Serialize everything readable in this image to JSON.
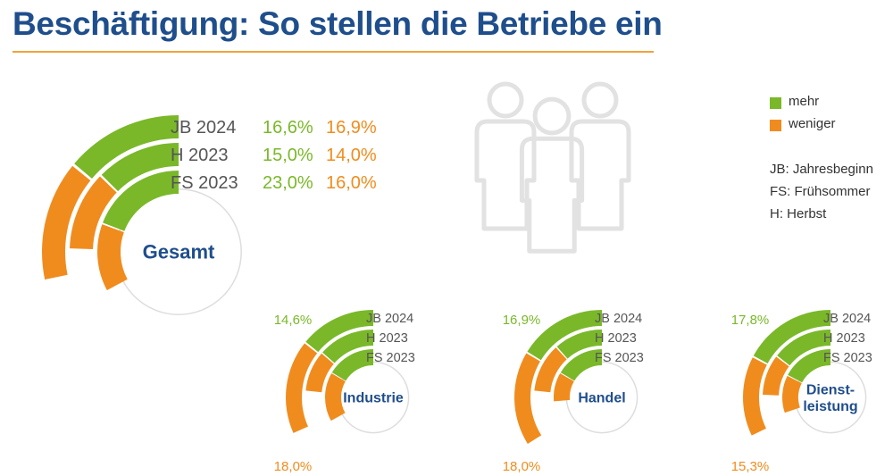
{
  "title": "Beschäftigung: So stellen die Betriebe ein",
  "legend": [
    {
      "label": "mehr",
      "color": "#7ab829"
    },
    {
      "label": "weniger",
      "color": "#f08c1e"
    }
  ],
  "abbreviations": [
    "JB: Jahresbeginn",
    "FS: Frühsommer",
    "H: Herbst"
  ],
  "colors": {
    "mehr": "#7ab829",
    "weniger": "#f08c1e",
    "center": "#1f4e8c",
    "ring_label": "#555555",
    "icon": "#e2e2e2"
  },
  "decor_icon": "people-group-icon",
  "chart_data": [
    {
      "type": "radial-bar",
      "name": "Gesamt",
      "center_label": [
        "Gesamt"
      ],
      "rings": [
        {
          "label": "JB 2024",
          "mehr": 16.6,
          "weniger": 16.9,
          "mehr_text": "16,6%",
          "weniger_text": "16,9%"
        },
        {
          "label": "H 2023",
          "mehr": 15.0,
          "weniger": 14.0,
          "mehr_text": "15,0%",
          "weniger_text": "14,0%"
        },
        {
          "label": "FS 2023",
          "mehr": 23.0,
          "weniger": 16.0,
          "mehr_text": "23,0%",
          "weniger_text": "16,0%"
        }
      ],
      "value_labels": "per-ring"
    },
    {
      "type": "radial-bar",
      "name": "Industrie",
      "center_label": [
        "Industrie"
      ],
      "rings": [
        {
          "label": "JB 2024",
          "mehr": 14.6,
          "weniger": 18.0
        },
        {
          "label": "H 2023",
          "mehr": 14.0,
          "weniger": 10.0
        },
        {
          "label": "FS 2023",
          "mehr": 17.0,
          "weniger": 17.0
        }
      ],
      "outer_mehr_text": "14,6%",
      "outer_weniger_text": "18,0%"
    },
    {
      "type": "radial-bar",
      "name": "Handel",
      "center_label": [
        "Handel"
      ],
      "rings": [
        {
          "label": "JB 2024",
          "mehr": 16.9,
          "weniger": 18.0
        },
        {
          "label": "H 2023",
          "mehr": 12.0,
          "weniger": 12.0
        },
        {
          "label": "FS 2023",
          "mehr": 17.0,
          "weniger": 10.0
        }
      ],
      "outer_mehr_text": "16,9%",
      "outer_weniger_text": "18,0%"
    },
    {
      "type": "radial-bar",
      "name": "Dienstleistung",
      "center_label": [
        "Dienst-",
        "leistung"
      ],
      "rings": [
        {
          "label": "JB 2024",
          "mehr": 17.8,
          "weniger": 15.3
        },
        {
          "label": "H 2023",
          "mehr": 15.0,
          "weniger": 10.0
        },
        {
          "label": "FS 2023",
          "mehr": 18.0,
          "weniger": 13.0
        }
      ],
      "outer_mehr_text": "17,8%",
      "outer_weniger_text": "15,3%"
    }
  ]
}
